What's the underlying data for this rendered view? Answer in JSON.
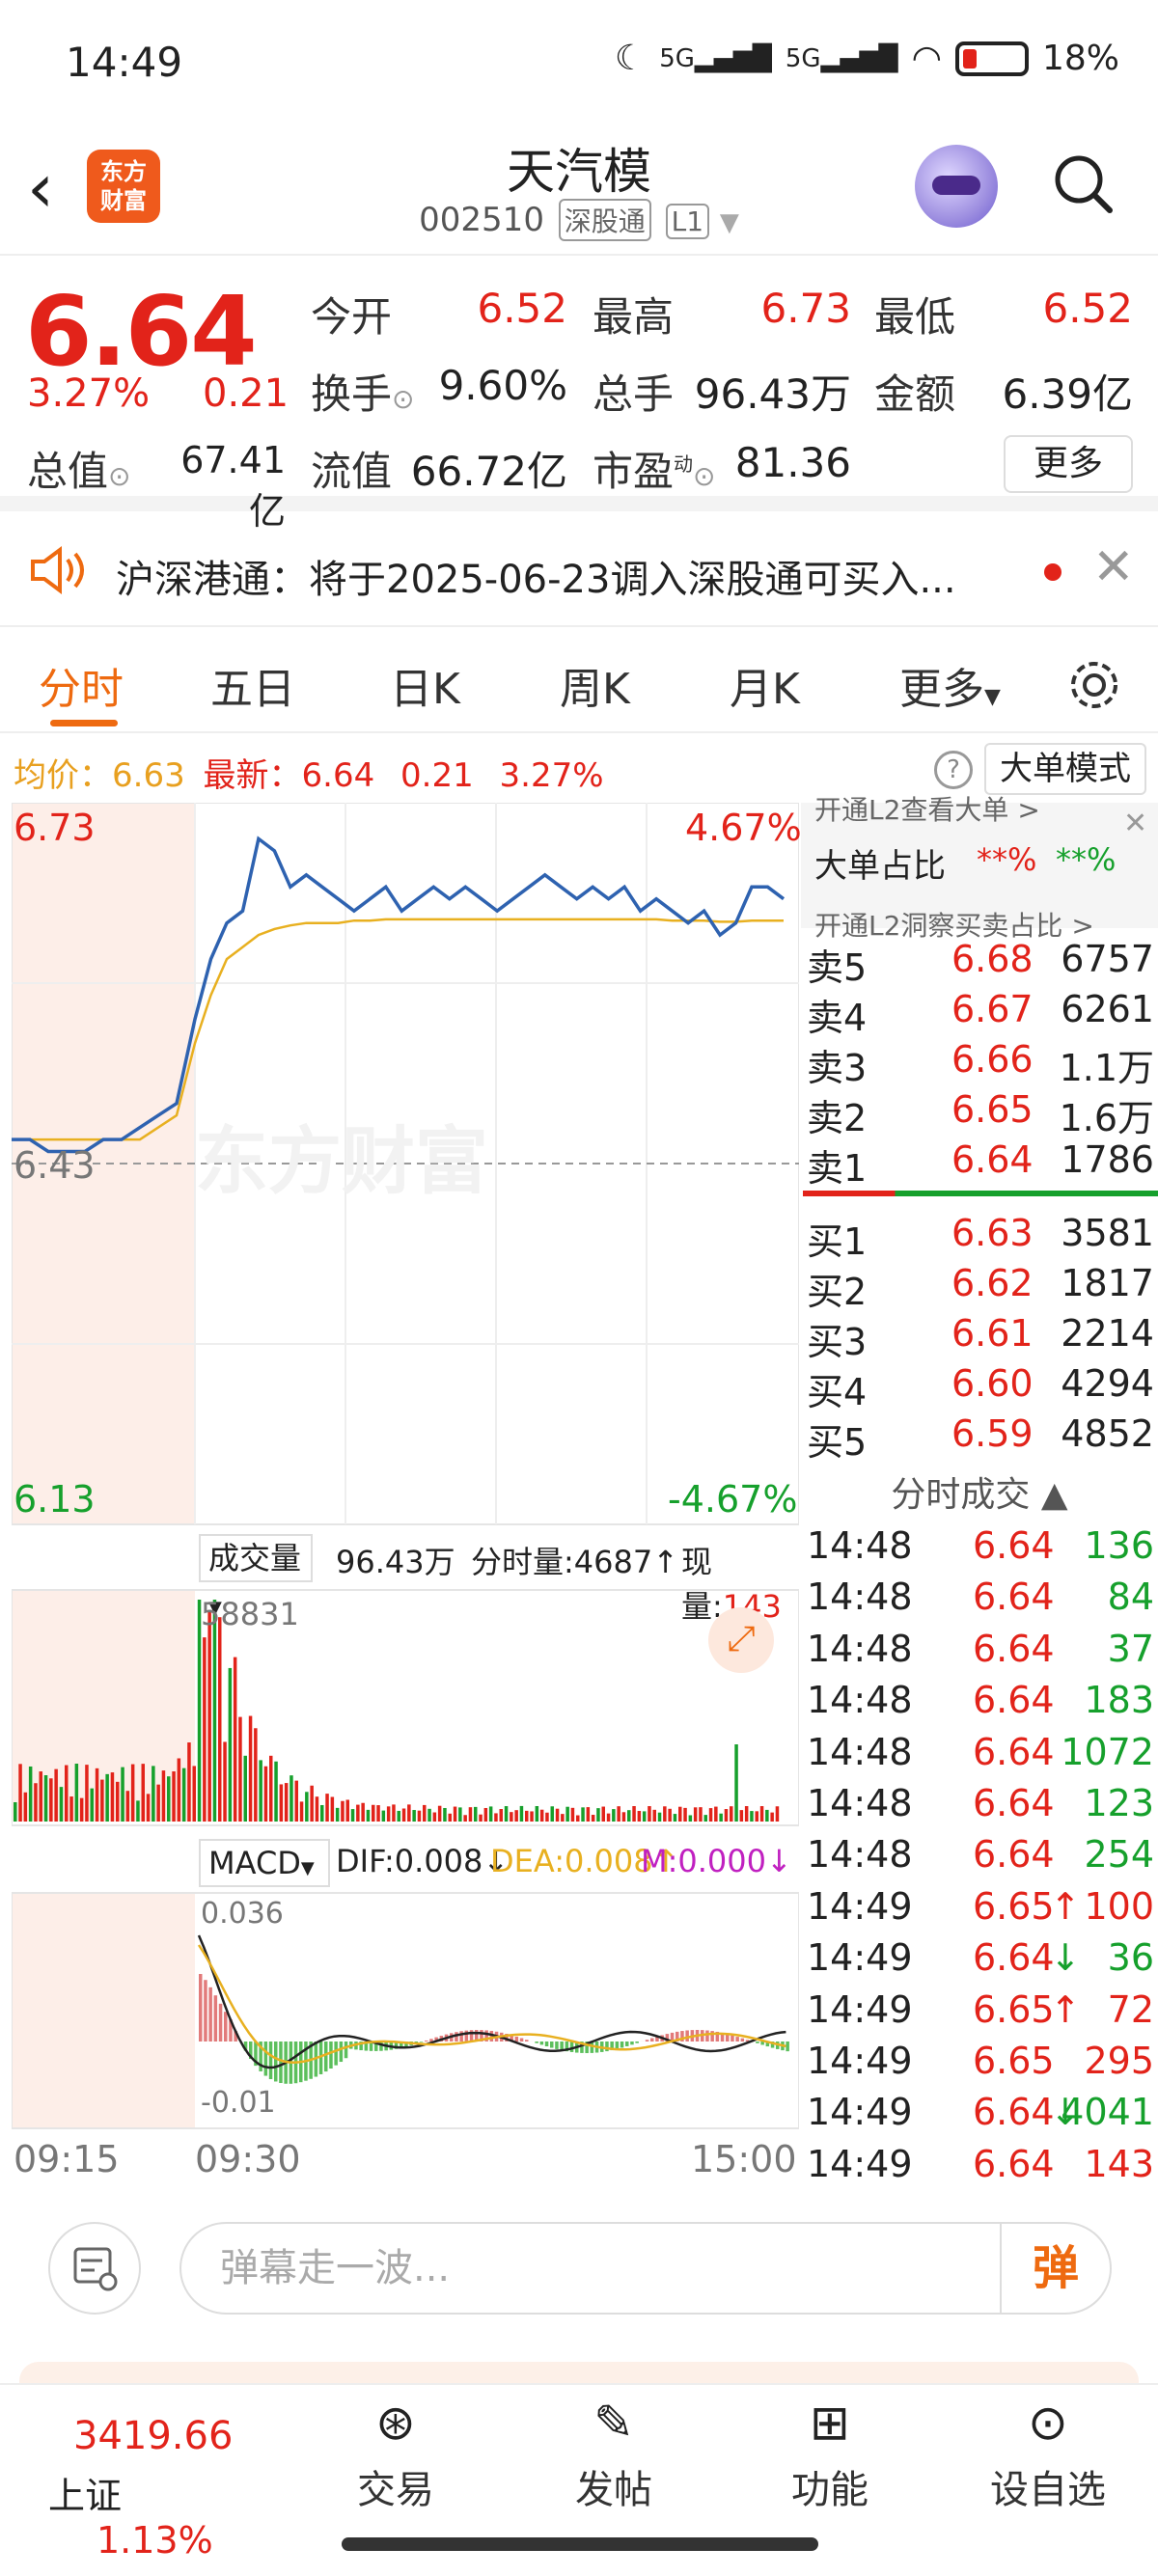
{
  "status_bar": {
    "time": "14:49",
    "signal1": "5G",
    "signal2": "5G",
    "battery": "18%"
  },
  "header": {
    "logo_line1": "东方",
    "logo_line2": "财富",
    "name": "天汽模",
    "code": "002510",
    "tag1": "深股通",
    "tag2": "L1"
  },
  "quote": {
    "price": "6.64",
    "change_pct": "3.27%",
    "change_abs": "0.21",
    "open_label": "今开",
    "open": "6.52",
    "high_label": "最高",
    "high": "6.73",
    "low_label": "最低",
    "low": "6.52",
    "turnover_label": "换手",
    "turnover": "9.60%",
    "volume_label": "总手",
    "volume": "96.43万",
    "amount_label": "金额",
    "amount": "6.39亿",
    "mktcap_label": "总值",
    "mktcap": "67.41亿",
    "float_label": "流值",
    "float": "66.72亿",
    "pe_label": "市盈",
    "pe_sup": "动",
    "pe": "81.36",
    "more": "更多"
  },
  "notice": {
    "text": "沪深港通：将于2025-06-23调入深股通可买入..."
  },
  "tabs": [
    "分时",
    "五日",
    "日K",
    "周K",
    "月K",
    "更多"
  ],
  "info": {
    "avg_label": "均价：",
    "avg": "6.63",
    "latest_label": "最新：",
    "latest": "6.64",
    "chg": "0.21",
    "pct": "3.27%",
    "big_mode": "大单模式"
  },
  "chart": {
    "y_max": "6.73",
    "y_min": "6.13",
    "y_mid": "6.43",
    "pct_max": "4.67%",
    "pct_min": "-4.67%",
    "watermark": "东方财富",
    "vol_label": "成交量",
    "vol_total": "96.43万",
    "vol_min_label": "分时量:4687",
    "vol_now_label": "现量:",
    "vol_now": "143",
    "vol_max": "58831",
    "macd_label": "MACD",
    "dif": "DIF:0.008",
    "dea": "DEA:0.008",
    "m": "M:0.000",
    "macd_max": "0.036",
    "macd_min": "-0.01",
    "t_start": "09:15",
    "t_open": "09:30",
    "t_end": "15:00"
  },
  "chart_data": {
    "type": "line",
    "price_series": [
      6.45,
      6.45,
      6.44,
      6.44,
      6.44,
      6.45,
      6.45,
      6.46,
      6.47,
      6.48,
      6.55,
      6.6,
      6.63,
      6.64,
      6.7,
      6.69,
      6.66,
      6.67,
      6.66,
      6.65,
      6.64,
      6.65,
      6.66,
      6.64,
      6.65,
      6.66,
      6.65,
      6.66,
      6.65,
      6.64,
      6.65,
      6.66,
      6.67,
      6.66,
      6.65,
      6.66,
      6.65,
      6.66,
      6.64,
      6.65,
      6.64,
      6.63,
      6.64,
      6.62,
      6.63,
      6.66,
      6.66,
      6.65
    ],
    "avg_series": [
      6.45,
      6.45,
      6.45,
      6.45,
      6.45,
      6.45,
      6.45,
      6.45,
      6.46,
      6.47,
      6.53,
      6.57,
      6.6,
      6.61,
      6.62,
      6.625,
      6.628,
      6.63,
      6.63,
      6.63,
      6.632,
      6.632,
      6.633,
      6.633,
      6.633,
      6.633,
      6.633,
      6.633,
      6.633,
      6.633,
      6.633,
      6.633,
      6.633,
      6.633,
      6.633,
      6.633,
      6.633,
      6.633,
      6.633,
      6.633,
      6.632,
      6.632,
      6.632,
      6.631,
      6.631,
      6.632,
      6.632,
      6.632
    ],
    "ylim": [
      6.13,
      6.73
    ]
  },
  "book": {
    "big_title": "大单占比",
    "big_v1": "**%",
    "big_v2": "**%",
    "top_text": "开通L2查看大单 >",
    "bottom_text": "开通L2洞察买卖占比 >",
    "sells": [
      {
        "label": "卖5",
        "price": "6.68",
        "vol": "6757"
      },
      {
        "label": "卖4",
        "price": "6.67",
        "vol": "6261"
      },
      {
        "label": "卖3",
        "price": "6.66",
        "vol": "1.1万"
      },
      {
        "label": "卖2",
        "price": "6.65",
        "vol": "1.6万"
      },
      {
        "label": "卖1",
        "price": "6.64",
        "vol": "1786"
      }
    ],
    "buys": [
      {
        "label": "买1",
        "price": "6.63",
        "vol": "3581"
      },
      {
        "label": "买2",
        "price": "6.62",
        "vol": "1817"
      },
      {
        "label": "买3",
        "price": "6.61",
        "vol": "2214"
      },
      {
        "label": "买4",
        "price": "6.60",
        "vol": "4294"
      },
      {
        "label": "买5",
        "price": "6.59",
        "vol": "4852"
      }
    ],
    "trades_title": "分时成交",
    "trades": [
      {
        "t": "14:48",
        "p": "6.64",
        "v": "136",
        "c": "green",
        "a": ""
      },
      {
        "t": "14:48",
        "p": "6.64",
        "v": "84",
        "c": "green",
        "a": ""
      },
      {
        "t": "14:48",
        "p": "6.64",
        "v": "37",
        "c": "green",
        "a": ""
      },
      {
        "t": "14:48",
        "p": "6.64",
        "v": "183",
        "c": "green",
        "a": ""
      },
      {
        "t": "14:48",
        "p": "6.64",
        "v": "1072",
        "c": "green",
        "a": ""
      },
      {
        "t": "14:48",
        "p": "6.64",
        "v": "123",
        "c": "green",
        "a": ""
      },
      {
        "t": "14:48",
        "p": "6.64",
        "v": "254",
        "c": "green",
        "a": ""
      },
      {
        "t": "14:49",
        "p": "6.65",
        "v": "100",
        "c": "red",
        "a": "↑"
      },
      {
        "t": "14:49",
        "p": "6.64",
        "v": "36",
        "c": "green",
        "a": "↓"
      },
      {
        "t": "14:49",
        "p": "6.65",
        "v": "72",
        "c": "red",
        "a": "↑"
      },
      {
        "t": "14:49",
        "p": "6.65",
        "v": "295",
        "c": "red",
        "a": ""
      },
      {
        "t": "14:49",
        "p": "6.64",
        "v": "4041",
        "c": "green",
        "a": "↓"
      },
      {
        "t": "14:49",
        "p": "6.64",
        "v": "143",
        "c": "red",
        "a": ""
      }
    ]
  },
  "danmaku": {
    "placeholder": "弹幕走一波...",
    "btn": "弹"
  },
  "tabbar": {
    "index_value": "3419.66",
    "index_name": "上证",
    "index_pct": "1.13%",
    "trade": "交易",
    "post": "发帖",
    "func": "功能",
    "watch": "设自选"
  }
}
